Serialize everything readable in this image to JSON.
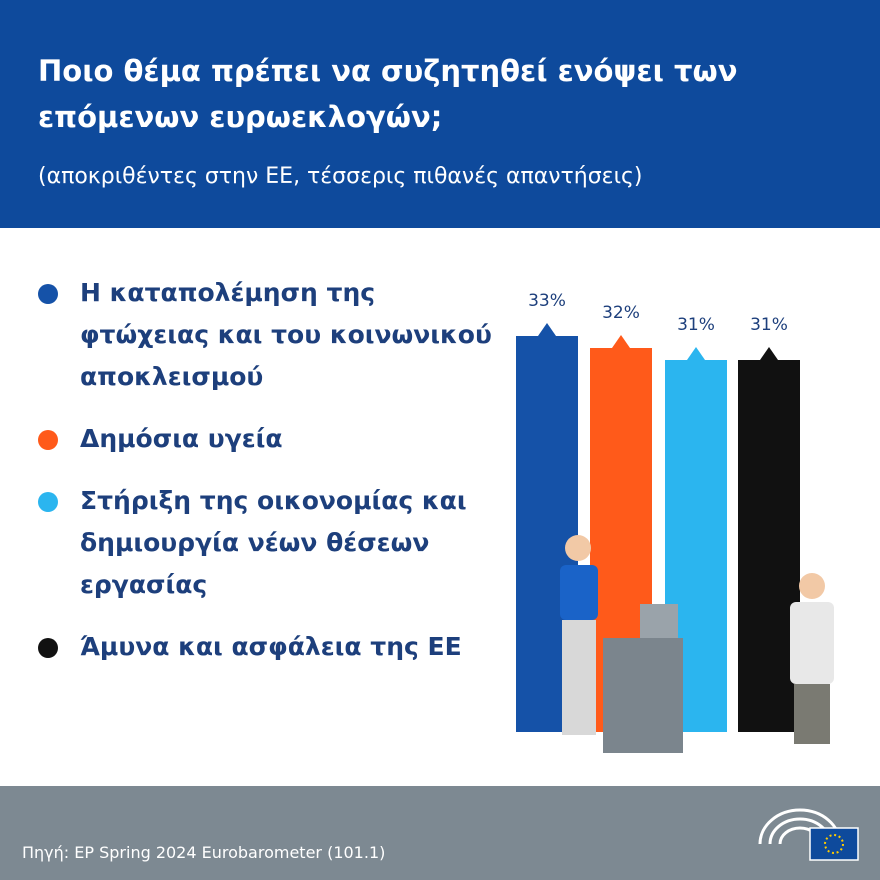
{
  "chart_data": {
    "type": "bar",
    "title": "Ποιο θέμα πρέπει να συζητηθεί ενόψει των επόμενων ευρωεκλογών;",
    "subtitle": "(αποκριθέντες στην ΕΕ, τέσσερις πιθανές απαντήσεις)",
    "categories": [
      "Η καταπολέμηση της φτώχειας και του κοινωνικού αποκλεισμού",
      "Δημόσια υγεία",
      "Στήριξη της οικονομίας και δημιουργία νέων θέσεων εργασίας",
      "Άμυνα και ασφάλεια της ΕΕ"
    ],
    "values": [
      33,
      32,
      31,
      31
    ],
    "value_labels": [
      "33%",
      "32%",
      "31%",
      "31%"
    ],
    "colors": [
      "#1552a8",
      "#ff5a1a",
      "#2bb5ef",
      "#111111"
    ],
    "source": "Πηγή: EP Spring 2024 Eurobarometer (101.1)"
  }
}
